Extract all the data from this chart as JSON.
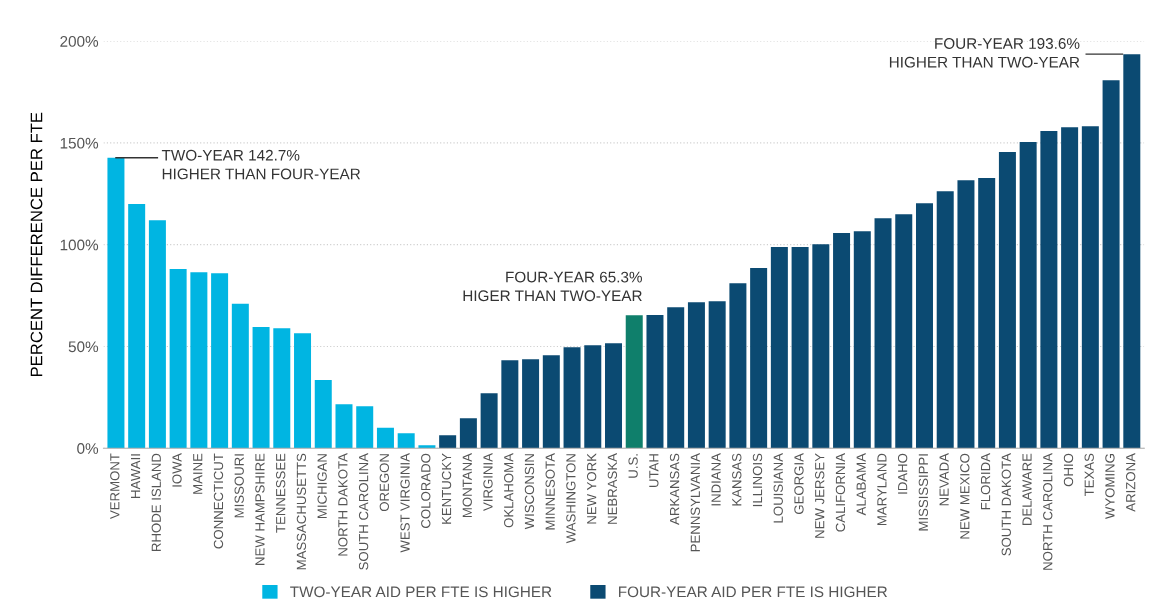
{
  "chart_data": {
    "type": "bar",
    "ylabel": "PERCENT DIFFERENCE PER FTE",
    "categories": [
      "VERMONT",
      "HAWAII",
      "RHODE ISLAND",
      "IOWA",
      "MAINE",
      "CONNECTICUT",
      "MISSOURI",
      "NEW HAMPSHIRE",
      "TENNESSEE",
      "MASSACHUSETTS",
      "MICHIGAN",
      "NORTH DAKOTA",
      "SOUTH CAROLINA",
      "OREGON",
      "WEST VIRGINIA",
      "COLORADO",
      "KENTUCKY",
      "MONTANA",
      "VIRGINIA",
      "OKLAHOMA",
      "WISCONSIN",
      "MINNESOTA",
      "WASHINGTON",
      "NEW YORK",
      "NEBRASKA",
      "U.S.",
      "UTAH",
      "ARKANSAS",
      "PENNSYLVANIA",
      "INDIANA",
      "KANSAS",
      "ILLINOIS",
      "LOUISIANA",
      "GEORGIA",
      "NEW JERSEY",
      "CALIFORNIA",
      "ALABAMA",
      "MARYLAND",
      "IDAHO",
      "MISSISSIPPI",
      "NEVADA",
      "NEW MEXICO",
      "FLORIDA",
      "SOUTH DAKOTA",
      "DELAWARE",
      "NORTH CAROLINA",
      "OHIO",
      "TEXAS",
      "WYOMING",
      "ARIZONA"
    ],
    "series": [
      {
        "name": "TWO-YEAR AID PER FTE IS HIGHER",
        "color": "#00b5e2",
        "values": [
          142.7,
          120,
          112,
          88,
          86.5,
          86,
          71,
          59.5,
          59,
          56.5,
          33.5,
          21.6,
          20.6,
          10,
          7.4,
          1.5,
          null,
          null,
          null,
          null,
          null,
          null,
          null,
          null,
          null,
          null,
          null,
          null,
          null,
          null,
          null,
          null,
          null,
          null,
          null,
          null,
          null,
          null,
          null,
          null,
          null,
          null,
          null,
          null,
          null,
          null,
          null,
          null,
          null,
          null
        ]
      },
      {
        "name": "FOUR-YEAR AID PER FTE IS HIGHER",
        "color": "#0b4a72",
        "values": [
          null,
          null,
          null,
          null,
          null,
          null,
          null,
          null,
          null,
          null,
          null,
          null,
          null,
          null,
          null,
          null,
          6.4,
          14.7,
          27,
          43.2,
          43.7,
          45.7,
          49.6,
          50.6,
          51.6,
          null,
          65.4,
          69.3,
          71.7,
          72.2,
          81,
          88.5,
          98.8,
          98.8,
          100.2,
          105.7,
          106.6,
          113,
          115,
          120.4,
          126.3,
          131.7,
          132.7,
          145.5,
          150.4,
          155.8,
          157.7,
          158.2,
          180.8,
          193.6
        ]
      },
      {
        "color": "#0f7f6b",
        "values": [
          null,
          null,
          null,
          null,
          null,
          null,
          null,
          null,
          null,
          null,
          null,
          null,
          null,
          null,
          null,
          null,
          null,
          null,
          null,
          null,
          null,
          null,
          null,
          null,
          null,
          65.3,
          null,
          null,
          null,
          null,
          null,
          null,
          null,
          null,
          null,
          null,
          null,
          null,
          null,
          null,
          null,
          null,
          null,
          null,
          null,
          null,
          null,
          null,
          null,
          null
        ]
      }
    ],
    "ylim": [
      0,
      200
    ],
    "yticks": [
      {
        "value": 0,
        "label": "0%"
      },
      {
        "value": 50,
        "label": "50%"
      },
      {
        "value": 100,
        "label": "100%"
      },
      {
        "value": 150,
        "label": "150%"
      },
      {
        "value": 200,
        "label": "200%"
      }
    ],
    "grid": "y",
    "legend": "bottom",
    "annotations": [
      {
        "text": "TWO-YEAR 142.7%\nHIGHER THAN FOUR-YEAR",
        "x": "VERMONT",
        "y": 142.7
      },
      {
        "text": "FOUR-YEAR 65.3%\nHIGER THAN TWO-YEAR",
        "x": "U.S.",
        "y": 65.3
      },
      {
        "text": "FOUR-YEAR 193.6%\nHIGHER THAN TWO-YEAR",
        "x": "ARIZONA",
        "y": 193.6
      }
    ]
  }
}
